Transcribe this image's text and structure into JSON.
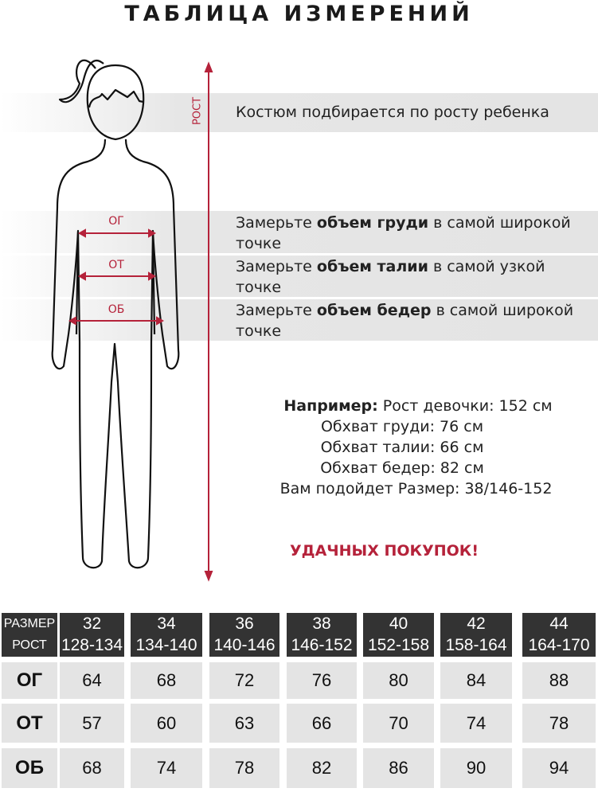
{
  "title": "ТАБЛИЦА ИЗМЕРЕНИЙ",
  "figure": {
    "height_label": "РОСТ",
    "chest_label": "ОГ",
    "waist_label": "ОТ",
    "hips_label": "ОБ",
    "accent_color": "#b5223a"
  },
  "instructions": {
    "height": "Костюм подбирается по росту ребенка",
    "chest": {
      "pre": "Замерьте ",
      "bold": "объем груди",
      "post": " в самой широкой точке"
    },
    "waist": {
      "pre": "Замерьте ",
      "bold": "объем талии",
      "post": " в самой узкой точке"
    },
    "hips": {
      "pre": "Замерьте ",
      "bold": "объем бедер",
      "post": " в самой широкой точке"
    }
  },
  "example": {
    "lead_bold": "Например:",
    "lead_rest": " Рост девочки: 152 см",
    "chest": "Обхват груди: 76 см",
    "waist": "Обхват талии: 66 см",
    "hips": "Обхват бедер: 82 см",
    "result": "Вам подойдет Размер: 38/146-152"
  },
  "closing": "УДАЧНЫХ ПОКУПОК!",
  "table": {
    "size_header": "РАЗМЕР",
    "height_header": "РОСТ",
    "sizes": [
      "32",
      "34",
      "36",
      "38",
      "40",
      "42",
      "44"
    ],
    "heights": [
      "128-134",
      "134-140",
      "140-146",
      "146-152",
      "152-158",
      "158-164",
      "164-170"
    ],
    "rows": [
      {
        "label": "ОГ",
        "values": [
          "64",
          "68",
          "72",
          "76",
          "80",
          "84",
          "88"
        ]
      },
      {
        "label": "ОТ",
        "values": [
          "57",
          "60",
          "63",
          "66",
          "70",
          "74",
          "78"
        ]
      },
      {
        "label": "ОБ",
        "values": [
          "68",
          "74",
          "78",
          "82",
          "86",
          "90",
          "94"
        ]
      }
    ]
  }
}
